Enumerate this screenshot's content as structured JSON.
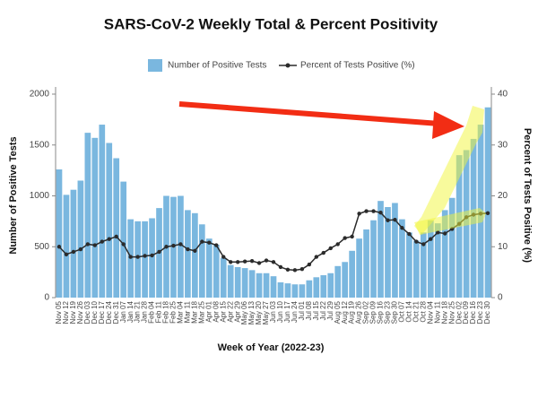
{
  "chart_data": {
    "type": "bar",
    "title": "SARS-CoV-2 Weekly Total & Percent Positivity",
    "x_label": "Week of Year (2022-23)",
    "y_label": "Number of Positive Tests",
    "y2_label": "Percent of Tests Positive (%)",
    "categories": [
      "Nov 05",
      "Nov 12",
      "Nov 19",
      "Nov 26",
      "Dec 03",
      "Dec 10",
      "Dec 17",
      "Dec 24",
      "Dec 31",
      "Jan 07",
      "Jan 14",
      "Jan 21",
      "Jan 28",
      "Feb 04",
      "Feb 11",
      "Feb 18",
      "Feb 25",
      "Mar 04",
      "Mar 11",
      "Mar 18",
      "Mar 25",
      "Apr 01",
      "Apr 08",
      "Apr 15",
      "Apr 22",
      "Apr 29",
      "May 06",
      "May 13",
      "May 20",
      "May 27",
      "Jun 03",
      "Jun 10",
      "Jun 17",
      "Jun 24",
      "Jul 01",
      "Jul 08",
      "Jul 15",
      "Jul 22",
      "Jul 29",
      "Aug 05",
      "Aug 12",
      "Aug 19",
      "Aug 26",
      "Sep 02",
      "Sep 09",
      "Sep 16",
      "Sep 23",
      "Sep 30",
      "Oct 07",
      "Oct 14",
      "Oct 21",
      "Oct 28",
      "Nov 04",
      "Nov 11",
      "Nov 18",
      "Nov 25",
      "Dec 02",
      "Dec 09",
      "Dec 16",
      "Dec 23",
      "Dec 30"
    ],
    "series": [
      {
        "name": "Number of Positive Tests",
        "type": "bar",
        "color": "#7ab7df",
        "values": [
          1260,
          1010,
          1060,
          1150,
          1620,
          1570,
          1700,
          1520,
          1370,
          1140,
          770,
          750,
          750,
          780,
          880,
          1000,
          990,
          1000,
          860,
          830,
          720,
          580,
          520,
          390,
          320,
          300,
          290,
          270,
          240,
          240,
          210,
          150,
          140,
          130,
          130,
          170,
          200,
          220,
          240,
          310,
          350,
          460,
          580,
          670,
          760,
          950,
          890,
          930,
          770,
          640,
          560,
          640,
          760,
          730,
          860,
          980,
          1400,
          1450,
          1560,
          1700,
          1870
        ]
      },
      {
        "name": "Percent of Tests Positive (%)",
        "type": "line",
        "axis": "y2",
        "color": "#2b2b2b",
        "values": [
          10,
          8.5,
          9,
          9.5,
          10.5,
          10.3,
          11,
          11.5,
          12,
          10.5,
          8,
          8,
          8.2,
          8.3,
          9,
          10,
          10.2,
          10.5,
          9.5,
          9.2,
          11,
          10.8,
          10.3,
          8,
          7,
          7,
          7.1,
          7.2,
          6.8,
          7.3,
          7,
          6,
          5.5,
          5.4,
          5.6,
          6.5,
          8,
          8.8,
          9.7,
          10.5,
          11.7,
          12,
          16.5,
          17,
          17,
          16.7,
          15.2,
          15.3,
          13.7,
          12.5,
          11,
          10.5,
          11.5,
          12.8,
          12.6,
          13.5,
          14.5,
          15.8,
          16.3,
          16.5,
          16.6
        ]
      }
    ],
    "ylim": [
      0,
      2000
    ],
    "yticks": [
      0,
      500,
      1000,
      1500,
      2000
    ],
    "y2lim": [
      0,
      40
    ],
    "y2ticks": [
      0,
      10,
      20,
      30,
      40
    ],
    "grid": false,
    "legend": "top"
  }
}
